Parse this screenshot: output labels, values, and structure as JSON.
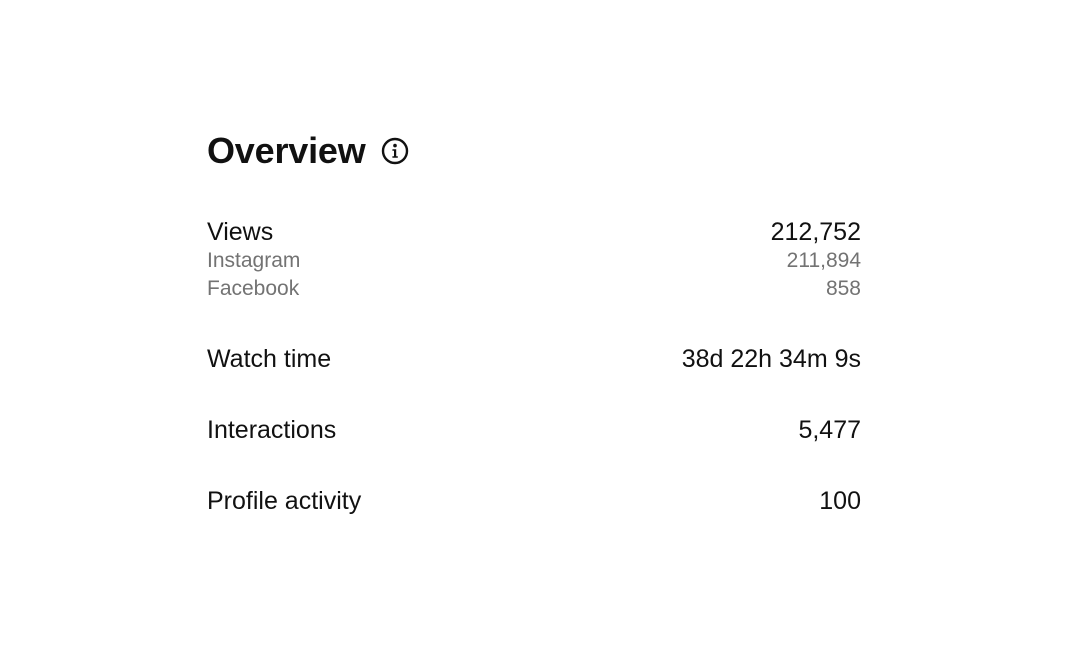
{
  "overview": {
    "title": "Overview",
    "info_icon": "info-circle-icon"
  },
  "views": {
    "label": "Views",
    "value": "212,752",
    "breakdown": [
      {
        "label": "Instagram",
        "value": "211,894"
      },
      {
        "label": "Facebook",
        "value": "858"
      }
    ]
  },
  "watch_time": {
    "label": "Watch time",
    "value": "38d 22h 34m 9s"
  },
  "interactions": {
    "label": "Interactions",
    "value": "5,477"
  },
  "profile_activity": {
    "label": "Profile activity",
    "value": "100"
  },
  "colors": {
    "primary_text": "#111111",
    "secondary_text": "#737373",
    "background": "#ffffff"
  }
}
